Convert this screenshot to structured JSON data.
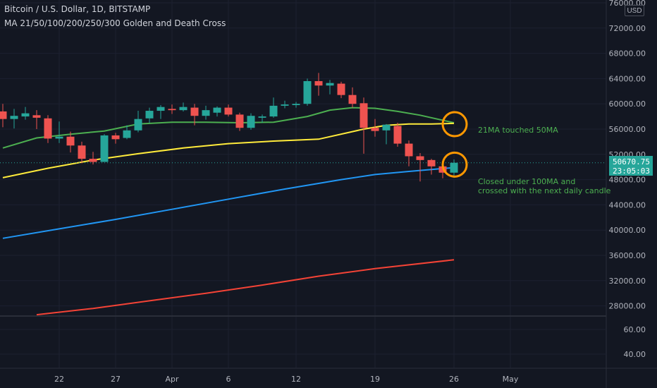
{
  "header": {
    "line1": "Bitcoin / U.S. Dollar, 1D, BITSTAMP",
    "line2": "MA 21/50/100/200/250/300 Golden and Death Cross"
  },
  "currency_label": "USD",
  "price_tag": {
    "price": "50670.75",
    "countdown": "23:05:03"
  },
  "annotations": {
    "ma_touch": "21MA touched 50MA",
    "closed_under_line1": "Closed under 100MA and",
    "closed_under_line2": "crossed with the next daily candle"
  },
  "colors": {
    "background": "#131722",
    "up_candle": "#26a69a",
    "down_candle": "#ef5350",
    "ma21": "#4caf50",
    "ma50": "#ffeb3b",
    "ma100": "#2196f3",
    "ma200": "#f44336",
    "highlight_circle": "#ff9800",
    "annotation_text": "#4caf50"
  },
  "chart_data": {
    "type": "candlestick",
    "title": "Bitcoin / U.S. Dollar, 1D, BITSTAMP",
    "ylabel": "USD",
    "ylim": [
      24000,
      77000
    ],
    "grid": true,
    "y_ticks": [
      "76000.00",
      "72000.00",
      "68000.00",
      "64000.00",
      "60000.00",
      "56000.00",
      "52000.00",
      "48000.00",
      "44000.00",
      "40000.00",
      "36000.00",
      "32000.00",
      "28000.00"
    ],
    "indicator_ticks": [
      "60.00",
      "40.00"
    ],
    "x_ticks": [
      {
        "label": "22",
        "day": 22
      },
      {
        "label": "27",
        "day": 27
      },
      {
        "label": "Apr",
        "day": 32
      },
      {
        "label": "6",
        "day": 37
      },
      {
        "label": "12",
        "day": 43
      },
      {
        "label": "19",
        "day": 50
      },
      {
        "label": "26",
        "day": 57
      },
      {
        "label": "May",
        "day": 62
      }
    ],
    "candles": [
      {
        "day": 17,
        "open": 58800,
        "high": 60000,
        "low": 56300,
        "close": 57600
      },
      {
        "day": 18,
        "open": 57600,
        "high": 59200,
        "low": 56100,
        "close": 58100
      },
      {
        "day": 19,
        "open": 58000,
        "high": 59500,
        "low": 57500,
        "close": 58500
      },
      {
        "day": 20,
        "open": 58200,
        "high": 59000,
        "low": 56000,
        "close": 57800
      },
      {
        "day": 21,
        "open": 57700,
        "high": 58200,
        "low": 53800,
        "close": 54500
      },
      {
        "day": 22,
        "open": 54500,
        "high": 57200,
        "low": 53800,
        "close": 54800
      },
      {
        "day": 23,
        "open": 54800,
        "high": 55600,
        "low": 52300,
        "close": 53400
      },
      {
        "day": 24,
        "open": 53400,
        "high": 54000,
        "low": 50600,
        "close": 51300
      },
      {
        "day": 25,
        "open": 51300,
        "high": 52400,
        "low": 50400,
        "close": 50800
      },
      {
        "day": 26,
        "open": 50800,
        "high": 55200,
        "low": 50800,
        "close": 55000
      },
      {
        "day": 27,
        "open": 55000,
        "high": 55400,
        "low": 53700,
        "close": 54400
      },
      {
        "day": 28,
        "open": 54600,
        "high": 56600,
        "low": 54400,
        "close": 55800
      },
      {
        "day": 29,
        "open": 55800,
        "high": 58900,
        "low": 55500,
        "close": 57600
      },
      {
        "day": 30,
        "open": 57700,
        "high": 59400,
        "low": 57000,
        "close": 58900
      },
      {
        "day": 31,
        "open": 58900,
        "high": 59800,
        "low": 57600,
        "close": 59500
      },
      {
        "day": 32,
        "open": 59200,
        "high": 59900,
        "low": 58400,
        "close": 59000
      },
      {
        "day": 33,
        "open": 59000,
        "high": 60200,
        "low": 58800,
        "close": 59500
      },
      {
        "day": 34,
        "open": 59400,
        "high": 60000,
        "low": 56600,
        "close": 58100
      },
      {
        "day": 35,
        "open": 58100,
        "high": 59700,
        "low": 57500,
        "close": 59000
      },
      {
        "day": 36,
        "open": 58600,
        "high": 59600,
        "low": 58000,
        "close": 59400
      },
      {
        "day": 37,
        "open": 59400,
        "high": 59900,
        "low": 58000,
        "close": 58300
      },
      {
        "day": 38,
        "open": 58300,
        "high": 58600,
        "low": 55700,
        "close": 56200
      },
      {
        "day": 39,
        "open": 56200,
        "high": 58500,
        "low": 55900,
        "close": 58100
      },
      {
        "day": 40,
        "open": 57800,
        "high": 58300,
        "low": 57000,
        "close": 58000
      },
      {
        "day": 41,
        "open": 58000,
        "high": 61000,
        "low": 57800,
        "close": 59700
      },
      {
        "day": 42,
        "open": 59700,
        "high": 60500,
        "low": 59300,
        "close": 59900
      },
      {
        "day": 43,
        "open": 59800,
        "high": 60300,
        "low": 59400,
        "close": 60000
      },
      {
        "day": 44,
        "open": 60000,
        "high": 64000,
        "low": 59700,
        "close": 63600
      },
      {
        "day": 45,
        "open": 63600,
        "high": 64900,
        "low": 61300,
        "close": 62900
      },
      {
        "day": 46,
        "open": 62900,
        "high": 63800,
        "low": 61500,
        "close": 63300
      },
      {
        "day": 47,
        "open": 63200,
        "high": 63500,
        "low": 60900,
        "close": 61400
      },
      {
        "day": 48,
        "open": 61400,
        "high": 62600,
        "low": 59400,
        "close": 60000
      },
      {
        "day": 49,
        "open": 60100,
        "high": 61000,
        "low": 52100,
        "close": 56200
      },
      {
        "day": 50,
        "open": 56200,
        "high": 57600,
        "low": 54800,
        "close": 55700
      },
      {
        "day": 51,
        "open": 55800,
        "high": 56800,
        "low": 53600,
        "close": 56700
      },
      {
        "day": 52,
        "open": 56500,
        "high": 57000,
        "low": 53200,
        "close": 53700
      },
      {
        "day": 53,
        "open": 53700,
        "high": 54200,
        "low": 50100,
        "close": 51700
      },
      {
        "day": 54,
        "open": 51700,
        "high": 52200,
        "low": 47700,
        "close": 51100
      },
      {
        "day": 55,
        "open": 51100,
        "high": 51300,
        "low": 48800,
        "close": 50100
      },
      {
        "day": 56,
        "open": 50100,
        "high": 50700,
        "low": 48200,
        "close": 49100
      },
      {
        "day": 57,
        "open": 49100,
        "high": 51200,
        "low": 48300,
        "close": 50670.75
      }
    ],
    "series": [
      {
        "name": "21MA",
        "color": "#4caf50",
        "x": [
          17,
          20,
          23,
          26,
          29,
          32,
          35,
          38,
          41,
          44,
          46,
          48,
          50,
          52,
          54,
          57
        ],
        "values": [
          53000,
          54600,
          55200,
          55700,
          56800,
          57100,
          57100,
          57000,
          57100,
          58000,
          59000,
          59400,
          59300,
          58800,
          58200,
          57000
        ]
      },
      {
        "name": "50MA",
        "color": "#ffeb3b",
        "x": [
          17,
          21,
          25,
          29,
          33,
          37,
          41,
          45,
          49,
          51,
          53,
          55,
          57
        ],
        "values": [
          48300,
          49800,
          51100,
          52100,
          53000,
          53700,
          54100,
          54400,
          56000,
          56600,
          56800,
          56800,
          56900
        ]
      },
      {
        "name": "100MA",
        "color": "#2196f3",
        "x": [
          17,
          22,
          27,
          32,
          37,
          42,
          47,
          50,
          53,
          55,
          57
        ],
        "values": [
          38700,
          40200,
          41700,
          43300,
          44900,
          46500,
          48000,
          48800,
          49300,
          49600,
          49900
        ]
      },
      {
        "name": "200MA",
        "color": "#f44336",
        "x": [
          20,
          25,
          30,
          35,
          40,
          45,
          50,
          57
        ],
        "values": [
          26600,
          27600,
          28800,
          30000,
          31300,
          32700,
          33900,
          35300
        ]
      }
    ],
    "highlight_circles": [
      {
        "day": 57,
        "price": 57000
      },
      {
        "day": 57,
        "price": 50600
      }
    ]
  }
}
